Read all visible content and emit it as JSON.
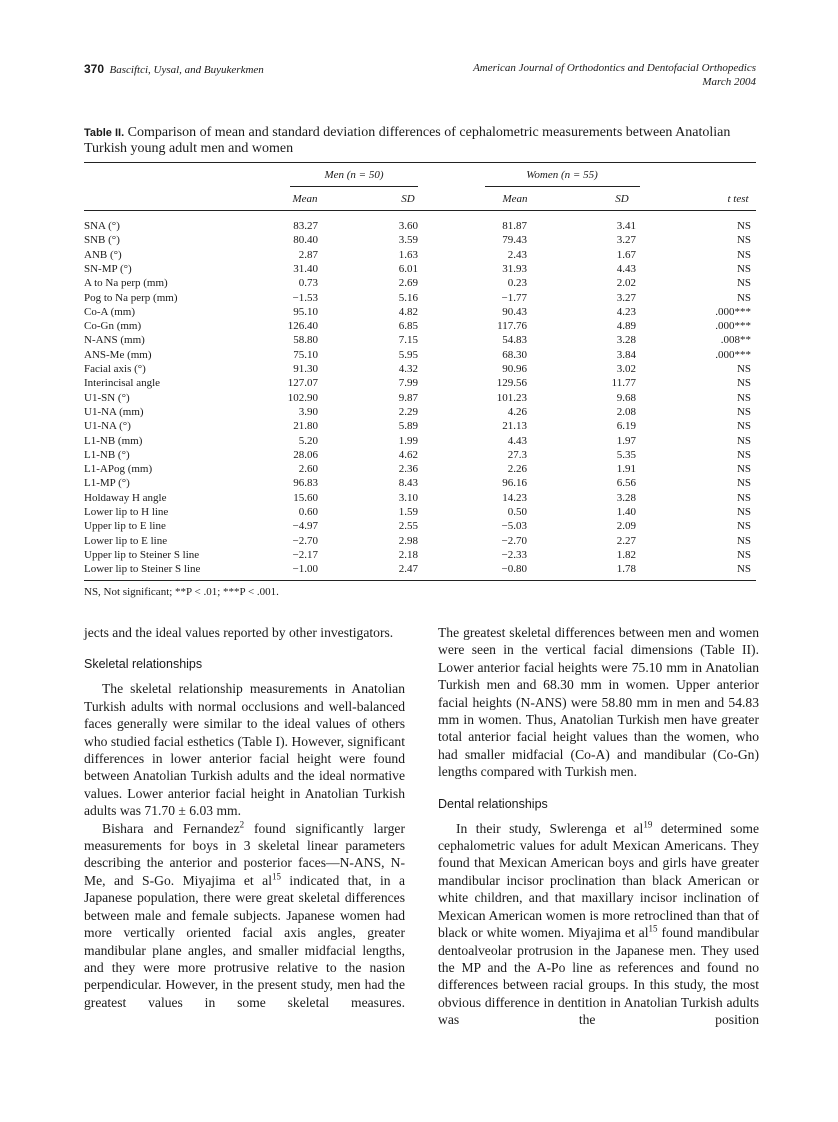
{
  "header": {
    "page_number": "370",
    "authors": "Basciftci, Uysal, and Buyukerkmen",
    "journal": "American Journal of Orthodontics and Dentofacial Orthopedics",
    "date": "March 2004"
  },
  "table": {
    "label": "Table II.",
    "caption": "Comparison of mean and standard deviation differences of cephalometric measurements between Anatolian Turkish young adult men and women",
    "groups": [
      "Men (n = 50)",
      "Women (n = 55)"
    ],
    "columns": [
      "Mean",
      "SD",
      "Mean",
      "SD",
      "t test"
    ],
    "rows": [
      [
        "SNA (°)",
        "83.27",
        "3.60",
        "81.87",
        "3.41",
        "NS"
      ],
      [
        "SNB (°)",
        "80.40",
        "3.59",
        "79.43",
        "3.27",
        "NS"
      ],
      [
        "ANB (°)",
        "2.87",
        "1.63",
        "2.43",
        "1.67",
        "NS"
      ],
      [
        "SN-MP (°)",
        "31.40",
        "6.01",
        "31.93",
        "4.43",
        "NS"
      ],
      [
        "A to Na perp (mm)",
        "0.73",
        "2.69",
        "0.23",
        "2.02",
        "NS"
      ],
      [
        "Pog to Na perp (mm)",
        "−1.53",
        "5.16",
        "−1.77",
        "3.27",
        "NS"
      ],
      [
        "Co-A (mm)",
        "95.10",
        "4.82",
        "90.43",
        "4.23",
        ".000***"
      ],
      [
        "Co-Gn (mm)",
        "126.40",
        "6.85",
        "117.76",
        "4.89",
        ".000***"
      ],
      [
        "N-ANS (mm)",
        "58.80",
        "7.15",
        "54.83",
        "3.28",
        ".008**"
      ],
      [
        "ANS-Me (mm)",
        "75.10",
        "5.95",
        "68.30",
        "3.84",
        ".000***"
      ],
      [
        "Facial axis (°)",
        "91.30",
        "4.32",
        "90.96",
        "3.02",
        "NS"
      ],
      [
        "Interincisal angle",
        "127.07",
        "7.99",
        "129.56",
        "11.77",
        "NS"
      ],
      [
        "U1-SN (°)",
        "102.90",
        "9.87",
        "101.23",
        "9.68",
        "NS"
      ],
      [
        "U1-NA (mm)",
        "3.90",
        "2.29",
        "4.26",
        "2.08",
        "NS"
      ],
      [
        "U1-NA (°)",
        "21.80",
        "5.89",
        "21.13",
        "6.19",
        "NS"
      ],
      [
        "L1-NB (mm)",
        "5.20",
        "1.99",
        "4.43",
        "1.97",
        "NS"
      ],
      [
        "L1-NB (°)",
        "28.06",
        "4.62",
        "27.3",
        "5.35",
        "NS"
      ],
      [
        "L1-APog (mm)",
        "2.60",
        "2.36",
        "2.26",
        "1.91",
        "NS"
      ],
      [
        "L1-MP (°)",
        "96.83",
        "8.43",
        "96.16",
        "6.56",
        "NS"
      ],
      [
        "Holdaway H angle",
        "15.60",
        "3.10",
        "14.23",
        "3.28",
        "NS"
      ],
      [
        "Lower lip to H line",
        "0.60",
        "1.59",
        "0.50",
        "1.40",
        "NS"
      ],
      [
        "Upper lip to E line",
        "−4.97",
        "2.55",
        "−5.03",
        "2.09",
        "NS"
      ],
      [
        "Lower lip to E line",
        "−2.70",
        "2.98",
        "−2.70",
        "2.27",
        "NS"
      ],
      [
        "Upper lip to Steiner S line",
        "−2.17",
        "2.18",
        "−2.33",
        "1.82",
        "NS"
      ],
      [
        "Lower lip to Steiner S line",
        "−1.00",
        "2.47",
        "−0.80",
        "1.78",
        "NS"
      ]
    ],
    "footnote": "NS, Not significant; **P < .01; ***P < .001."
  },
  "columns": [
    [
      {
        "runs": [
          "jects and the ideal values reported by other investigators."
        ]
      },
      {
        "heading": "Skeletal relationships"
      },
      {
        "runs": [
          "The skeletal relationship measurements in Anatolian Turkish adults with normal occlusions and well-balanced faces generally were similar to the ideal values of others who studied facial esthetics (Table I). However, significant differences in lower anterior facial height were found between Anatolian Turkish adults and the ideal normative values. Lower anterior facial height in Anatolian Turkish adults was 71.70 ± 6.03 mm."
        ]
      },
      {
        "runs": [
          "Bishara and Fernandez",
          "2",
          " found significantly larger measurements for boys in 3 skeletal linear parameters describing the anterior and posterior faces—N-ANS, N-Me, and S-Go. Miyajima et al",
          "15",
          " indicated that, in a Japanese population, there were great skeletal differences between male and female subjects. Japanese women had more vertically oriented facial axis angles, greater mandibular plane angles, and smaller midfacial lengths, and they were more protrusive relative to the nasion perpendicular. However, in the present study, men had the greatest values in some skeletal measures."
        ]
      }
    ],
    [
      {
        "runs": [
          "The greatest skeletal differences between men and women were seen in the vertical facial dimensions (Table II). Lower anterior facial heights were 75.10 mm in Anatolian Turkish men and 68.30 mm in women. Upper anterior facial heights (N-ANS) were 58.80 mm in men and 54.83 mm in women. Thus, Anatolian Turkish men have greater total anterior facial height values than the women, who had smaller midfacial (Co-A) and mandibular (Co-Gn) lengths compared with Turkish men."
        ]
      },
      {
        "heading": "Dental relationships"
      },
      {
        "runs": [
          "In their study, Swlerenga et al",
          "19",
          " determined some cephalometric values for adult Mexican Americans. They found that Mexican American boys and girls have greater mandibular incisor proclination than black American or white children, and that maxillary incisor inclination of Mexican American women is more retroclined than that of black or white women. Miyajima et al",
          "15",
          " found mandibular dentoalveolar protrusion in the Japanese men. They used the MP and the A-Po line as references and found no differences between racial groups. In this study, the most obvious difference in dentition in Anatolian Turkish adults was the position"
        ]
      }
    ]
  ]
}
